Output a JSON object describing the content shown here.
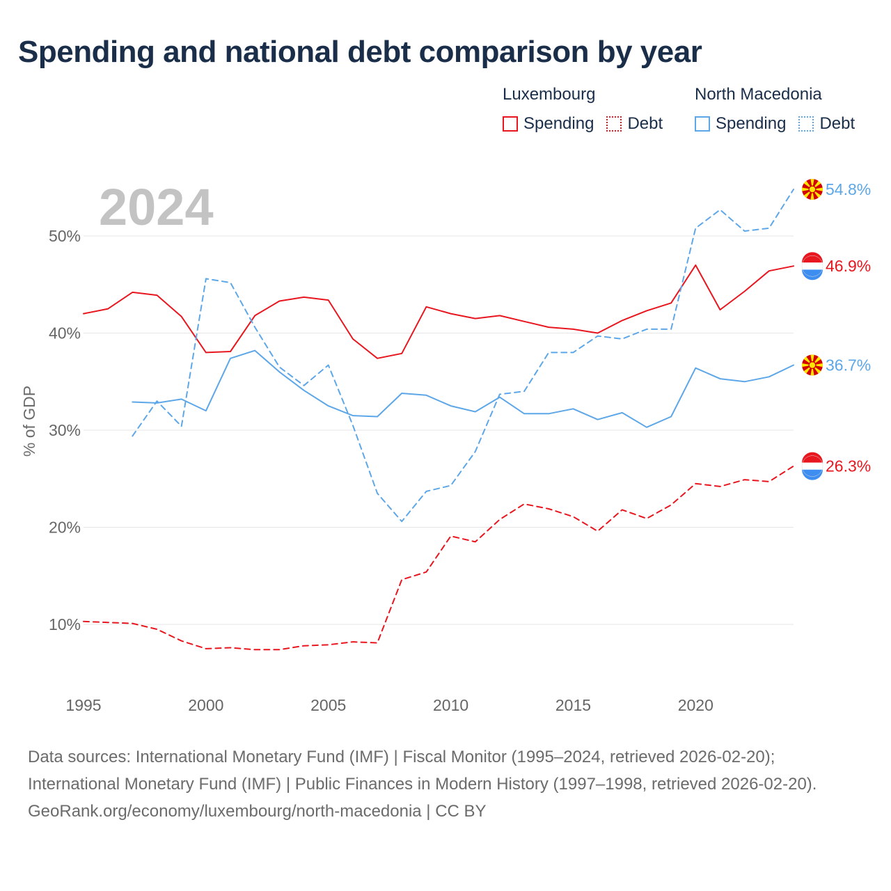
{
  "title": "Spending and national debt comparison by year",
  "legend": {
    "luxembourg": {
      "name": "Luxembourg",
      "spending": "Spending",
      "debt": "Debt"
    },
    "north_macedonia": {
      "name": "North Macedonia",
      "spending": "Spending",
      "debt": "Debt"
    }
  },
  "colors": {
    "luxembourg": "#e8161e",
    "north_macedonia": "#5da7e8",
    "grid": "#e6e6e6",
    "year_watermark": "#c3c3c3"
  },
  "chart_data": {
    "type": "line",
    "year_label": "2024",
    "ylabel": "% of GDP",
    "xlim": [
      1995,
      2024
    ],
    "ylim": [
      3,
      57
    ],
    "x_ticks": [
      1995,
      2000,
      2005,
      2010,
      2015,
      2020
    ],
    "y_ticks": [
      10,
      20,
      30,
      40,
      50
    ],
    "y_tick_labels": [
      "10%",
      "20%",
      "30%",
      "40%",
      "50%"
    ],
    "series": [
      {
        "name": "Luxembourg Spending",
        "country": "Luxembourg",
        "style": "solid",
        "x": [
          1995,
          1996,
          1997,
          1998,
          1999,
          2000,
          2001,
          2002,
          2003,
          2004,
          2005,
          2006,
          2007,
          2008,
          2009,
          2010,
          2011,
          2012,
          2013,
          2014,
          2015,
          2016,
          2017,
          2018,
          2019,
          2020,
          2021,
          2022,
          2023,
          2024
        ],
        "values": [
          42.0,
          42.5,
          44.2,
          43.9,
          41.7,
          38.0,
          38.1,
          41.8,
          43.3,
          43.7,
          43.4,
          39.4,
          37.4,
          37.9,
          42.7,
          42.0,
          41.5,
          41.8,
          41.2,
          40.6,
          40.4,
          40.0,
          41.3,
          42.3,
          43.1,
          47.0,
          42.4,
          44.3,
          46.4,
          46.9
        ],
        "end_label": "46.9%"
      },
      {
        "name": "Luxembourg Debt",
        "country": "Luxembourg",
        "style": "dashed",
        "x": [
          1995,
          1996,
          1997,
          1998,
          1999,
          2000,
          2001,
          2002,
          2003,
          2004,
          2005,
          2006,
          2007,
          2008,
          2009,
          2010,
          2011,
          2012,
          2013,
          2014,
          2015,
          2016,
          2017,
          2018,
          2019,
          2020,
          2021,
          2022,
          2023,
          2024
        ],
        "values": [
          10.3,
          10.2,
          10.1,
          9.5,
          8.3,
          7.5,
          7.6,
          7.4,
          7.4,
          7.8,
          7.9,
          8.2,
          8.1,
          14.6,
          15.4,
          19.1,
          18.5,
          20.8,
          22.4,
          21.9,
          21.1,
          19.6,
          21.8,
          20.9,
          22.3,
          24.5,
          24.2,
          24.9,
          24.7,
          26.3
        ],
        "end_label": "26.3%"
      },
      {
        "name": "North Macedonia Spending",
        "country": "North Macedonia",
        "style": "solid",
        "x": [
          1997,
          1998,
          1999,
          2000,
          2001,
          2002,
          2003,
          2004,
          2005,
          2006,
          2007,
          2008,
          2009,
          2010,
          2011,
          2012,
          2013,
          2014,
          2015,
          2016,
          2017,
          2018,
          2019,
          2020,
          2021,
          2022,
          2023,
          2024
        ],
        "values": [
          32.9,
          32.8,
          33.2,
          32.0,
          37.4,
          38.2,
          36.0,
          34.1,
          32.5,
          31.5,
          31.4,
          33.8,
          33.6,
          32.5,
          31.9,
          33.4,
          31.7,
          31.7,
          32.2,
          31.1,
          31.8,
          30.3,
          31.4,
          36.4,
          35.3,
          35.0,
          35.5,
          36.7
        ],
        "end_label": "36.7%"
      },
      {
        "name": "North Macedonia Debt",
        "country": "North Macedonia",
        "style": "dashed",
        "x": [
          1997,
          1998,
          1999,
          2000,
          2001,
          2002,
          2003,
          2004,
          2005,
          2006,
          2007,
          2008,
          2009,
          2010,
          2011,
          2012,
          2013,
          2014,
          2015,
          2016,
          2017,
          2018,
          2019,
          2020,
          2021,
          2022,
          2023,
          2024
        ],
        "values": [
          29.4,
          33.0,
          30.4,
          45.6,
          45.2,
          40.6,
          36.5,
          34.6,
          36.7,
          30.5,
          23.5,
          20.6,
          23.7,
          24.3,
          27.8,
          33.7,
          34.0,
          38.0,
          38.0,
          39.7,
          39.4,
          40.4,
          40.4,
          50.8,
          52.7,
          50.5,
          50.8,
          54.8
        ],
        "end_label": "54.8%"
      }
    ]
  },
  "footer": {
    "sources": "Data sources: International Monetary Fund (IMF) | Fiscal Monitor (1995–2024, retrieved 2026-02-20); International Monetary Fund (IMF) | Public Finances in Modern History (1997–1998, retrieved 2026-02-20).",
    "credit": "GeoRank.org/economy/luxembourg/north-macedonia | CC BY"
  }
}
